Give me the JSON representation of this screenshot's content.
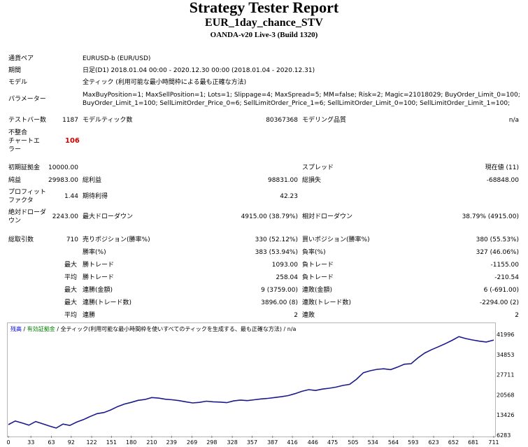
{
  "header": {
    "title": "Strategy Tester Report",
    "subtitle": "EUR_1day_chance_STV",
    "server": "OANDA-v20 Live-3 (Build 1320)"
  },
  "info": {
    "symbol_label": "通貨ペア",
    "symbol_value": "EURUSD-b (EUR/USD)",
    "period_label": "期間",
    "period_value": "日足(D1) 2018.01.04 00:00 - 2020.12.30 00:00 (2018.01.04 - 2020.12.31)",
    "model_label": "モデル",
    "model_value": "全ティック (利用可能な最小時間枠による最も正確な方法)",
    "params_label": "パラメーター",
    "params_line1": "MaxBuyPosition=1; MaxSellPosition=1; Lots=1; Slippage=4; MaxSpread=5; MM=false; Risk=2; Magic=21018029; BuyOrder_Limit_0=100;",
    "params_line2": "BuyOrder_Limit_1=100; SellLimitOrder_Price_0=6; SellLimitOrder_Price_1=6; SellLimitOrder_Limit_0=100; SellLimitOrder_Limit_1=100;"
  },
  "stats": {
    "bars_label": "テストバー数",
    "bars_value": "1187",
    "ticks_label": "モデルティック数",
    "ticks_value": "80367368",
    "quality_label": "モデリング品質",
    "quality_value": "n/a",
    "mismatch_label_1": "不整合",
    "mismatch_label_2": "チャートエ",
    "mismatch_label_3": "ラー",
    "mismatch_value": "106",
    "deposit_label": "初期証拠金",
    "deposit_value": "10000.00",
    "spread_label": "スプレッド",
    "spread_value": "現在値 (11)",
    "net_label": "純益",
    "net_value": "29983.00",
    "gross_profit_label": "総利益",
    "gross_profit_value": "98831.00",
    "gross_loss_label": "総損失",
    "gross_loss_value": "-68848.00",
    "pf_label_1": "プロフィット",
    "pf_label_2": "ファクタ",
    "pf_value": "1.44",
    "expected_label": "期待利得",
    "expected_value": "42.23",
    "abs_dd_label_1": "絶対ドローダ",
    "abs_dd_label_2": "ウン",
    "abs_dd_value": "2243.00",
    "max_dd_label": "最大ドローダウン",
    "max_dd_value": "4915.00 (38.79%)",
    "rel_dd_label": "相対ドローダウン",
    "rel_dd_value": "38.79% (4915.00)",
    "trades_label": "総取引数",
    "trades_value": "710",
    "short_label": "売りポジション(勝率%)",
    "short_value": "330 (52.12%)",
    "long_label": "買いポジション(勝率%)",
    "long_value": "380 (55.53%)",
    "win_pct_label": "勝率(%)",
    "win_pct_value": "383 (53.94%)",
    "loss_pct_label": "負率(%)",
    "loss_pct_value": "327 (46.06%)",
    "max_prefix": "最大",
    "avg_prefix": "平均",
    "largest_win_label": "勝トレード",
    "largest_win_value": "1093.00",
    "largest_loss_label": "負トレード",
    "largest_loss_value": "-1155.00",
    "avg_win_label": "勝トレード",
    "avg_win_value": "258.04",
    "avg_loss_label": "負トレード",
    "avg_loss_value": "-210.54",
    "cons_win_money_label": "連勝(金額)",
    "cons_win_money_value": "9 (3759.00)",
    "cons_loss_money_label": "連敗(金額)",
    "cons_loss_money_value": "6 (-691.00)",
    "cons_win_count_label": "連勝(トレード数)",
    "cons_win_count_value": "3896.00 (8)",
    "cons_loss_count_label": "連敗(トレード数)",
    "cons_loss_count_value": "-2294.00 (2)",
    "avg_cons_win_label": "連勝",
    "avg_cons_win_value": "2",
    "avg_cons_loss_label": "連敗",
    "avg_cons_loss_value": "2"
  },
  "chart_legend": {
    "balance": "残高",
    "sep1": " / ",
    "equity": "有効証拠金",
    "sep2": " / ",
    "model": "全ティック(利用可能な最小時間枠を使いすべてのティックを生成する、最も正確な方法)",
    "sep3": " / ",
    "na": "n/a"
  },
  "colors": {
    "line": "#1a1a8c",
    "legend_balance": "#0000cc",
    "legend_equity": "#008000"
  },
  "chart_data": {
    "type": "line",
    "x_ticks": [
      "0",
      "33",
      "63",
      "92",
      "122",
      "151",
      "180",
      "210",
      "239",
      "269",
      "298",
      "328",
      "357",
      "387",
      "416",
      "446",
      "475",
      "505",
      "534",
      "564",
      "593",
      "623",
      "652",
      "681",
      "711"
    ],
    "y_ticks": [
      "41996",
      "34853",
      "27711",
      "20568",
      "13426",
      "6283"
    ],
    "xlim": [
      0,
      711
    ],
    "ylim": [
      6283,
      41996
    ],
    "series": [
      {
        "x": [
          0,
          10,
          20,
          30,
          40,
          50,
          60,
          70,
          80,
          90,
          100,
          110,
          120,
          130,
          140,
          150,
          160,
          170,
          180,
          190,
          200,
          210,
          220,
          230,
          240,
          250,
          260,
          270,
          280,
          290,
          300,
          310,
          320,
          330,
          340,
          350,
          360,
          370,
          380,
          390,
          400,
          410,
          420,
          430,
          440,
          450,
          460,
          470,
          480,
          490,
          500,
          510,
          520,
          530,
          540,
          550,
          560,
          570,
          580,
          590,
          600,
          610,
          620,
          630,
          640,
          650,
          660,
          670,
          680,
          690,
          700,
          711
        ],
        "y": [
          10000,
          11300,
          10600,
          9800,
          11100,
          10300,
          9500,
          8800,
          10200,
          9700,
          10900,
          11800,
          12900,
          13900,
          14300,
          15200,
          16400,
          17300,
          17900,
          18600,
          18900,
          19600,
          19400,
          19000,
          18800,
          18500,
          18100,
          17700,
          17900,
          18300,
          18100,
          18000,
          17800,
          18400,
          18700,
          18500,
          18800,
          19100,
          19300,
          19600,
          19900,
          20300,
          21000,
          21800,
          22400,
          22100,
          22600,
          22900,
          23300,
          23900,
          24300,
          26100,
          28400,
          29100,
          29600,
          29800,
          29500,
          30400,
          31400,
          31600,
          33700,
          35400,
          36600,
          37600,
          38700,
          39900,
          41200,
          40500,
          40000,
          39600,
          39300,
          39983
        ]
      }
    ]
  }
}
